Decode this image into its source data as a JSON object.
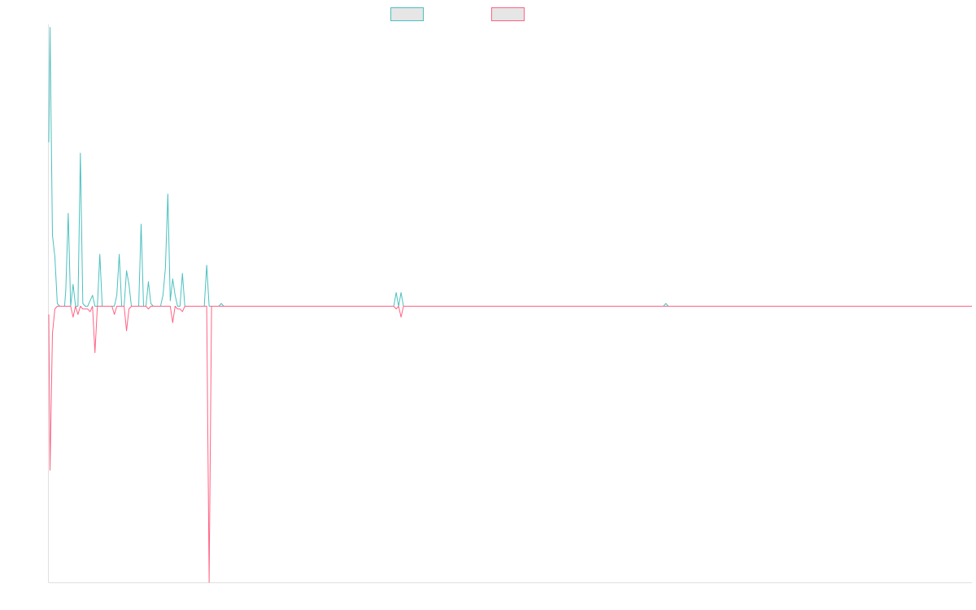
{
  "chart_data": {
    "type": "line",
    "title": "",
    "xlabel": "",
    "ylabel": "",
    "grid": false,
    "legend_position": "top-center",
    "x_range": [
      0,
      380
    ],
    "y_range": [
      -5.05,
      5.05
    ],
    "series": [
      {
        "color": "#4bc0c0",
        "points": [
          [
            0,
            3.0
          ],
          [
            0.5,
            5.1
          ],
          [
            1.5,
            1.3
          ],
          [
            2.5,
            0.9
          ],
          [
            3.5,
            0.05
          ],
          [
            4.5,
            0
          ],
          [
            5.5,
            0
          ],
          [
            6.5,
            0
          ],
          [
            7,
            0.3
          ],
          [
            8,
            1.7
          ],
          [
            9,
            0
          ],
          [
            10,
            0.4
          ],
          [
            11,
            0
          ],
          [
            12,
            0
          ],
          [
            13,
            2.8
          ],
          [
            14,
            0.05
          ],
          [
            15,
            0
          ],
          [
            16,
            0
          ],
          [
            17,
            0.1
          ],
          [
            18,
            0.2
          ],
          [
            19,
            0
          ],
          [
            20,
            0
          ],
          [
            21,
            0.95
          ],
          [
            22,
            0
          ],
          [
            23,
            0
          ],
          [
            26,
            0
          ],
          [
            27,
            0
          ],
          [
            28,
            0.2
          ],
          [
            29,
            0.95
          ],
          [
            30,
            0
          ],
          [
            31,
            0
          ],
          [
            32,
            0.65
          ],
          [
            33,
            0.4
          ],
          [
            34,
            0
          ],
          [
            35,
            0
          ],
          [
            36,
            0
          ],
          [
            37,
            0
          ],
          [
            38,
            1.5
          ],
          [
            39,
            0
          ],
          [
            40,
            0
          ],
          [
            41,
            0.45
          ],
          [
            42,
            0.05
          ],
          [
            43,
            0
          ],
          [
            45,
            0
          ],
          [
            46,
            0
          ],
          [
            47,
            0.2
          ],
          [
            48,
            0.7
          ],
          [
            49,
            2.05
          ],
          [
            50,
            0.1
          ],
          [
            51,
            0.5
          ],
          [
            52,
            0.2
          ],
          [
            53,
            0
          ],
          [
            54,
            0
          ],
          [
            55,
            0.6
          ],
          [
            56,
            0
          ],
          [
            57,
            0
          ],
          [
            63,
            0
          ],
          [
            64,
            0
          ],
          [
            65,
            0.75
          ],
          [
            66,
            0
          ],
          [
            67,
            0
          ],
          [
            69,
            0
          ],
          [
            70,
            0
          ],
          [
            71,
            0.05
          ],
          [
            72,
            0
          ],
          [
            80,
            0
          ],
          [
            81,
            0
          ],
          [
            82,
            0
          ],
          [
            95,
            0
          ],
          [
            100,
            0
          ],
          [
            104,
            0
          ],
          [
            105,
            0
          ],
          [
            130,
            0
          ],
          [
            141,
            0
          ],
          [
            142,
            0
          ],
          [
            143,
            0.25
          ],
          [
            144,
            0
          ],
          [
            145,
            0.25
          ],
          [
            146,
            0
          ],
          [
            164,
            0
          ],
          [
            168,
            0
          ],
          [
            171,
            0
          ],
          [
            252,
            0
          ],
          [
            253,
            0
          ],
          [
            254,
            0.05
          ],
          [
            255,
            0
          ],
          [
            380,
            0
          ]
        ]
      },
      {
        "color": "#ff6384",
        "points": [
          [
            0,
            -0.15
          ],
          [
            0.5,
            -3.0
          ],
          [
            1.5,
            -0.5
          ],
          [
            2.5,
            -0.05
          ],
          [
            3.5,
            0
          ],
          [
            4.5,
            0
          ],
          [
            5.5,
            0
          ],
          [
            6.5,
            0
          ],
          [
            7,
            0
          ],
          [
            8,
            0
          ],
          [
            9,
            0
          ],
          [
            10,
            -0.2
          ],
          [
            11,
            0
          ],
          [
            12,
            -0.15
          ],
          [
            13,
            0
          ],
          [
            14,
            -0.05
          ],
          [
            15,
            -0.05
          ],
          [
            16,
            -0.05
          ],
          [
            17,
            -0.1
          ],
          [
            18,
            0
          ],
          [
            19,
            -0.85
          ],
          [
            20,
            0
          ],
          [
            21,
            0
          ],
          [
            22,
            0
          ],
          [
            23,
            0
          ],
          [
            26,
            0
          ],
          [
            27,
            -0.15
          ],
          [
            28,
            0
          ],
          [
            29,
            0
          ],
          [
            30,
            0
          ],
          [
            31,
            0
          ],
          [
            32,
            -0.45
          ],
          [
            33,
            -0.05
          ],
          [
            34,
            0
          ],
          [
            35,
            0
          ],
          [
            36,
            0
          ],
          [
            37,
            0
          ],
          [
            38,
            0
          ],
          [
            39,
            0
          ],
          [
            40,
            0
          ],
          [
            41,
            -0.05
          ],
          [
            42,
            0
          ],
          [
            43,
            0
          ],
          [
            45,
            0
          ],
          [
            46,
            0
          ],
          [
            47,
            0
          ],
          [
            48,
            0
          ],
          [
            49,
            0
          ],
          [
            50,
            0
          ],
          [
            51,
            -0.3
          ],
          [
            52,
            0
          ],
          [
            53,
            -0.05
          ],
          [
            54,
            -0.05
          ],
          [
            55,
            -0.1
          ],
          [
            56,
            0
          ],
          [
            57,
            0
          ],
          [
            63,
            0
          ],
          [
            64,
            0
          ],
          [
            65,
            0
          ],
          [
            66,
            -5.05
          ],
          [
            67,
            0
          ],
          [
            69,
            0
          ],
          [
            70,
            0
          ],
          [
            71,
            0
          ],
          [
            72,
            0
          ],
          [
            80,
            0
          ],
          [
            81,
            0
          ],
          [
            82,
            0
          ],
          [
            95,
            0
          ],
          [
            100,
            0
          ],
          [
            104,
            0
          ],
          [
            105,
            0
          ],
          [
            130,
            0
          ],
          [
            141,
            0
          ],
          [
            142,
            0
          ],
          [
            143,
            -0.05
          ],
          [
            144,
            0
          ],
          [
            145,
            -0.2
          ],
          [
            146,
            0
          ],
          [
            164,
            0
          ],
          [
            168,
            0
          ],
          [
            171,
            0
          ],
          [
            252,
            0
          ],
          [
            253,
            0
          ],
          [
            254,
            0
          ],
          [
            255,
            0
          ],
          [
            380,
            0
          ]
        ]
      }
    ]
  }
}
